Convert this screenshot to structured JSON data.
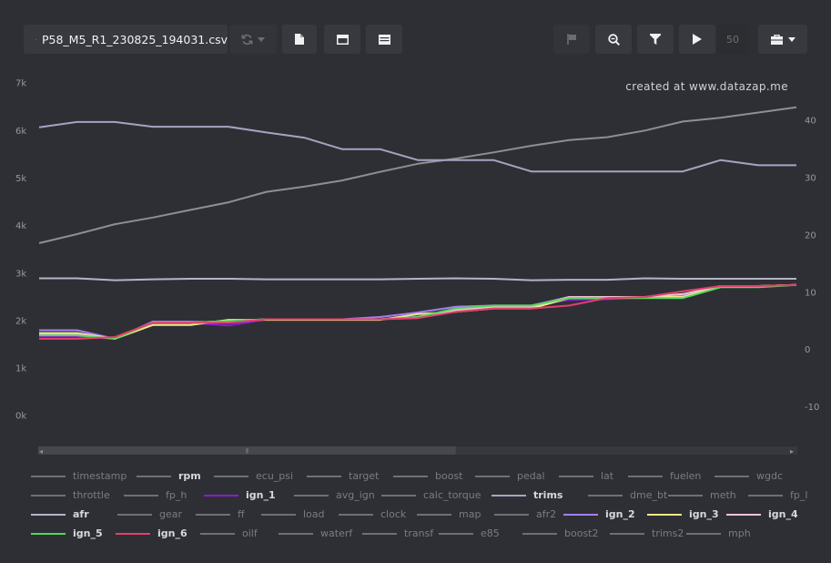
{
  "toolbar": {
    "file_name": "P58_M5_R1_230825_194031.csv",
    "speed_value": "50",
    "icons": {
      "external": "external-link-icon",
      "sync": "sync-icon",
      "doc": "file-icon",
      "panel": "panel-icon",
      "rows": "table-rows-icon",
      "flag": "flag-icon",
      "zoom": "zoom-icon",
      "filter": "filter-icon",
      "play": "play-icon",
      "tools": "briefcase-icon"
    }
  },
  "watermark": "created at www.datazap.me",
  "scrollbar": {
    "left_arrow": "◂",
    "right_arrow": "▸",
    "thumb": "⦀",
    "position": 0.0,
    "visible_fraction": 0.55
  },
  "chart_data": {
    "type": "line",
    "x": [
      0,
      1,
      2,
      3,
      4,
      5,
      6,
      7,
      8,
      9,
      10,
      11,
      12,
      13,
      14,
      15,
      16,
      17,
      18,
      19,
      20
    ],
    "left_axis": {
      "ticks": [
        "0k",
        "1k",
        "2k",
        "3k",
        "4k",
        "5k",
        "6k",
        "7k"
      ],
      "range": [
        -600,
        7300
      ]
    },
    "right_axis": {
      "ticks": [
        "-10",
        "0",
        "10",
        "20",
        "30",
        "40"
      ],
      "range": [
        -16.5,
        49
      ]
    },
    "grid": false,
    "series": [
      {
        "name": "rpm",
        "axis": "left",
        "color": "#8e8f94",
        "values": [
          3620,
          3810,
          4020,
          4160,
          4320,
          4480,
          4700,
          4810,
          4940,
          5120,
          5290,
          5400,
          5530,
          5670,
          5790,
          5850,
          5990,
          6180,
          6260,
          6370,
          6480
        ]
      },
      {
        "name": "trims",
        "axis": "left",
        "color": "#a6a3c2",
        "values": [
          6060,
          6170,
          6170,
          6070,
          6070,
          6070,
          5950,
          5840,
          5600,
          5600,
          5370,
          5370,
          5370,
          5130,
          5130,
          5130,
          5130,
          5130,
          5370,
          5260,
          5260
        ]
      },
      {
        "name": "afr",
        "axis": "left",
        "color": "#b4b3c7",
        "values": [
          2880,
          2880,
          2840,
          2860,
          2870,
          2870,
          2860,
          2860,
          2860,
          2860,
          2870,
          2880,
          2870,
          2840,
          2850,
          2850,
          2880,
          2870,
          2870,
          2870,
          2870
        ]
      },
      {
        "name": "ign_1",
        "axis": "right",
        "color": "#8a1bd6",
        "values": [
          2.2,
          2.2,
          1.8,
          4.6,
          4.6,
          4.1,
          5.2,
          5.2,
          5.2,
          5.2,
          5.8,
          6.8,
          7.4,
          7.6,
          8.6,
          8.7,
          9.1,
          9.4,
          10.9,
          10.9,
          11.2
        ]
      },
      {
        "name": "ign_2",
        "axis": "right",
        "color": "#a47ef2",
        "values": [
          3.3,
          3.3,
          1.8,
          4.8,
          4.8,
          4.6,
          5.2,
          5.2,
          5.2,
          5.6,
          6.4,
          7.4,
          7.6,
          7.6,
          9.1,
          9.1,
          9.1,
          9.4,
          11.0,
          11.0,
          11.2
        ]
      },
      {
        "name": "ign_3",
        "axis": "right",
        "color": "#efe88a",
        "values": [
          2.8,
          2.8,
          1.8,
          4.2,
          4.2,
          5.1,
          5.1,
          5.1,
          5.1,
          5.1,
          6.1,
          6.5,
          7.1,
          7.1,
          8.9,
          8.9,
          9.1,
          9.1,
          11.0,
          11.0,
          11.2
        ]
      },
      {
        "name": "ign_4",
        "axis": "right",
        "color": "#f0c3d3",
        "values": [
          2.6,
          2.6,
          1.8,
          4.6,
          4.6,
          4.9,
          5.2,
          5.2,
          5.2,
          5.2,
          5.6,
          6.8,
          7.4,
          7.4,
          9.1,
          9.1,
          9.1,
          9.6,
          11.0,
          11.0,
          11.2
        ]
      },
      {
        "name": "ign_5",
        "axis": "right",
        "color": "#57d65a",
        "values": [
          2.4,
          2.4,
          1.8,
          4.6,
          4.6,
          4.9,
          5.2,
          5.2,
          5.2,
          5.2,
          5.6,
          7.1,
          7.6,
          7.6,
          8.9,
          8.9,
          8.9,
          8.9,
          10.8,
          10.8,
          11.2
        ]
      },
      {
        "name": "ign_6",
        "axis": "right",
        "color": "#e23f6a",
        "values": [
          1.8,
          1.8,
          2.1,
          4.6,
          4.6,
          4.6,
          5.2,
          5.2,
          5.2,
          5.2,
          5.4,
          6.5,
          7.1,
          7.1,
          7.6,
          8.9,
          9.1,
          10.1,
          11.0,
          11.0,
          11.2
        ]
      }
    ]
  },
  "legend_rows": [
    [
      {
        "label": "timestamp",
        "active": false,
        "color": "#6f7074"
      },
      {
        "label": "rpm",
        "active": true,
        "color": "#6f7074"
      },
      {
        "label": "ecu_psi",
        "active": false,
        "color": "#6f7074"
      },
      {
        "label": "target",
        "active": false,
        "color": "#6f7074"
      },
      {
        "label": "boost",
        "active": false,
        "color": "#6f7074"
      },
      {
        "label": "pedal",
        "active": false,
        "color": "#6f7074"
      },
      {
        "label": "lat",
        "active": false,
        "color": "#6f7074"
      },
      {
        "label": "fuelen",
        "active": false,
        "color": "#6f7074"
      },
      {
        "label": "wgdc",
        "active": false,
        "color": "#6f7074"
      }
    ],
    [
      {
        "label": "throttle",
        "active": false,
        "color": "#6f7074"
      },
      {
        "label": "fp_h",
        "active": false,
        "color": "#6f7074"
      },
      {
        "label": "ign_1",
        "active": true,
        "color": "#8a1bd6"
      },
      {
        "label": "avg_ign",
        "active": false,
        "color": "#6f7074"
      },
      {
        "label": "calc_torque",
        "active": false,
        "color": "#6f7074"
      },
      {
        "label": "trims",
        "active": true,
        "color": "#a6a3c2"
      },
      {
        "label": "dme_bt",
        "active": false,
        "color": "#6f7074"
      },
      {
        "label": "meth",
        "active": false,
        "color": "#6f7074"
      },
      {
        "label": "fp_l",
        "active": false,
        "color": "#6f7074"
      }
    ],
    [
      {
        "label": "afr",
        "active": true,
        "color": "#b4b3c7"
      },
      {
        "label": "gear",
        "active": false,
        "color": "#6f7074"
      },
      {
        "label": "ff",
        "active": false,
        "color": "#6f7074"
      },
      {
        "label": "load",
        "active": false,
        "color": "#6f7074"
      },
      {
        "label": "clock",
        "active": false,
        "color": "#6f7074"
      },
      {
        "label": "map",
        "active": false,
        "color": "#6f7074"
      },
      {
        "label": "afr2",
        "active": false,
        "color": "#6f7074"
      },
      {
        "label": "ign_2",
        "active": true,
        "color": "#a47ef2"
      },
      {
        "label": "ign_3",
        "active": true,
        "color": "#efe88a"
      },
      {
        "label": "ign_4",
        "active": true,
        "color": "#f0c3d3"
      }
    ],
    [
      {
        "label": "ign_5",
        "active": true,
        "color": "#57d65a"
      },
      {
        "label": "ign_6",
        "active": true,
        "color": "#e23f6a"
      },
      {
        "label": "oilf",
        "active": false,
        "color": "#6f7074"
      },
      {
        "label": "waterf",
        "active": false,
        "color": "#6f7074"
      },
      {
        "label": "transf",
        "active": false,
        "color": "#6f7074"
      },
      {
        "label": "e85",
        "active": false,
        "color": "#6f7074"
      },
      {
        "label": "boost2",
        "active": false,
        "color": "#6f7074"
      },
      {
        "label": "trims2",
        "active": false,
        "color": "#6f7074"
      },
      {
        "label": "mph",
        "active": false,
        "color": "#6f7074"
      }
    ]
  ]
}
